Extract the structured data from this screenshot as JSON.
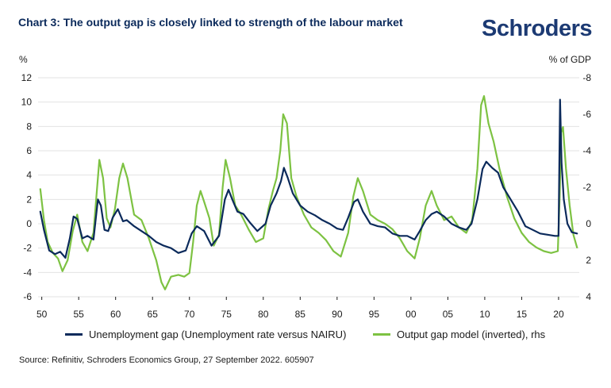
{
  "title": "Chart 3: The output gap is closely linked to strength of the labour market",
  "brand": "Schroders",
  "colors": {
    "unemployment": "#0b2a5b",
    "output_gap": "#7dc242",
    "text": "#1a1a1a"
  },
  "legend": {
    "unemployment": "Unemployment gap (Unemployment rate versus NAIRU)",
    "output_gap": "Output gap model (inverted), rhs"
  },
  "source": "Source: Refinitiv, Schroders Economics Group, 27 September 2022. 605907",
  "chart_data": {
    "type": "line",
    "ylabel": "%",
    "y2label": "% of GDP",
    "ylim": [
      -6,
      12
    ],
    "y2lim": [
      4,
      -8
    ],
    "yticks": [
      12,
      10,
      8,
      6,
      4,
      2,
      0,
      -2,
      -4,
      -6
    ],
    "y2ticks": [
      "-8",
      "-6",
      "-4",
      "-2",
      "0",
      "2",
      "4"
    ],
    "xlim": [
      1949.5,
      2022.8
    ],
    "xtick_years": [
      1950,
      1955,
      1960,
      1965,
      1970,
      1975,
      1980,
      1985,
      1990,
      1995,
      2000,
      2005,
      2010,
      2015,
      2020
    ],
    "xtick_labels": [
      "50",
      "55",
      "60",
      "65",
      "70",
      "75",
      "80",
      "85",
      "90",
      "95",
      "00",
      "05",
      "10",
      "15",
      "20"
    ],
    "series": [
      {
        "name": "Unemployment gap (Unemployment rate versus NAIRU)",
        "axis": "left",
        "x": [
          1949.8,
          1950.3,
          1951,
          1951.8,
          1952.5,
          1953.2,
          1953.8,
          1954.3,
          1954.8,
          1955.5,
          1956.2,
          1957,
          1957.6,
          1958,
          1958.5,
          1959,
          1959.6,
          1960.3,
          1961,
          1961.5,
          1962.5,
          1963.5,
          1964.5,
          1965.5,
          1966.5,
          1967.5,
          1968.5,
          1969.5,
          1970.3,
          1971,
          1972,
          1973,
          1974,
          1974.8,
          1975.3,
          1975.8,
          1976.5,
          1977.3,
          1978.2,
          1979.2,
          1980.3,
          1981,
          1981.8,
          1982.4,
          1982.8,
          1983.3,
          1984,
          1985,
          1986,
          1987,
          1988,
          1989,
          1990,
          1990.8,
          1991.5,
          1992.3,
          1992.8,
          1993.5,
          1994.5,
          1995.5,
          1996.5,
          1997.5,
          1998.5,
          1999.5,
          2000.5,
          2001.2,
          2002,
          2002.8,
          2003.5,
          2004.5,
          2005.5,
          2006.5,
          2007.5,
          2008.2,
          2009,
          2009.7,
          2010.2,
          2011,
          2011.8,
          2012.5,
          2013.5,
          2014.5,
          2015.5,
          2016.5,
          2017.5,
          2018.5,
          2019.5,
          2020.0,
          2020.2,
          2020.4,
          2020.7,
          2021.2,
          2021.8,
          2022.5
        ],
        "values": [
          1.0,
          -0.5,
          -2.2,
          -2.5,
          -2.3,
          -2.8,
          -1.2,
          0.6,
          0.4,
          -1.2,
          -1.0,
          -1.3,
          2.0,
          1.5,
          -0.5,
          -0.6,
          0.5,
          1.2,
          0.2,
          0.3,
          -0.2,
          -0.6,
          -1.0,
          -1.5,
          -1.8,
          -2.0,
          -2.4,
          -2.2,
          -0.8,
          -0.2,
          -0.6,
          -1.8,
          -1.0,
          2.0,
          2.8,
          2.0,
          1.0,
          0.8,
          0.1,
          -0.6,
          0.0,
          1.5,
          2.5,
          3.5,
          4.6,
          3.8,
          2.5,
          1.5,
          1.0,
          0.7,
          0.3,
          0.0,
          -0.4,
          -0.5,
          0.5,
          1.8,
          2.0,
          1.0,
          0.0,
          -0.2,
          -0.3,
          -0.8,
          -1.0,
          -1.0,
          -1.3,
          -0.6,
          0.3,
          0.8,
          1.0,
          0.6,
          0.0,
          -0.3,
          -0.5,
          0.0,
          2.0,
          4.5,
          5.1,
          4.6,
          4.2,
          3.0,
          2.0,
          1.0,
          -0.2,
          -0.5,
          -0.8,
          -0.9,
          -1.0,
          -1.0,
          10.2,
          5.0,
          2.0,
          0.0,
          -0.7,
          -0.8
        ]
      },
      {
        "name": "Output gap model (inverted), rhs",
        "axis": "right",
        "x": [
          1949.8,
          1950.3,
          1950.8,
          1951.5,
          1952.2,
          1952.8,
          1953.5,
          1954.2,
          1954.8,
          1955.5,
          1956.2,
          1957,
          1957.4,
          1957.8,
          1958.3,
          1958.8,
          1959.3,
          1959.9,
          1960.5,
          1961,
          1961.6,
          1962.5,
          1963.5,
          1964.5,
          1965.5,
          1966.2,
          1966.7,
          1967.5,
          1968.5,
          1969.3,
          1970,
          1970.5,
          1971.0,
          1971.5,
          1972,
          1972.7,
          1973.3,
          1974.0,
          1974.5,
          1974.9,
          1975.5,
          1976.2,
          1977,
          1978,
          1979,
          1980,
          1980.7,
          1981.3,
          1981.8,
          1982.3,
          1982.7,
          1983.2,
          1983.8,
          1984.5,
          1985.5,
          1986.5,
          1987.5,
          1988.5,
          1989.5,
          1990.5,
          1991.5,
          1992.2,
          1992.8,
          1993.5,
          1994.5,
          1995.5,
          1996.5,
          1997.5,
          1998.5,
          1999.5,
          2000.5,
          2001.2,
          2002,
          2002.8,
          2003.5,
          2004.5,
          2005.5,
          2006.5,
          2007.5,
          2008.3,
          2009.0,
          2009.5,
          2009.9,
          2010.5,
          2011.2,
          2012,
          2013,
          2014,
          2015,
          2016,
          2017,
          2018,
          2019,
          2019.9,
          2020.15,
          2020.35,
          2020.6,
          2021.0,
          2021.5,
          2022.0,
          2022.5
        ],
        "values": [
          -1.9,
          -0.2,
          1.0,
          1.6,
          1.9,
          2.6,
          2.0,
          0.4,
          -0.5,
          1.0,
          1.5,
          0.5,
          -1.5,
          -3.5,
          -2.5,
          -0.3,
          0.2,
          -0.8,
          -2.5,
          -3.3,
          -2.5,
          -0.5,
          -0.2,
          0.8,
          2.0,
          3.2,
          3.6,
          2.9,
          2.8,
          2.9,
          2.7,
          1.0,
          -1.0,
          -1.8,
          -1.2,
          -0.3,
          1.2,
          0.6,
          -2.0,
          -3.5,
          -2.5,
          -1.0,
          -0.5,
          0.3,
          1.0,
          0.8,
          -0.8,
          -1.8,
          -2.5,
          -4.0,
          -6.0,
          -5.5,
          -2.5,
          -1.5,
          -0.5,
          0.2,
          0.5,
          0.9,
          1.5,
          1.8,
          0.5,
          -1.5,
          -2.5,
          -1.8,
          -0.5,
          -0.2,
          0.0,
          0.3,
          0.8,
          1.5,
          1.9,
          0.8,
          -1.0,
          -1.8,
          -1.0,
          -0.2,
          -0.4,
          0.2,
          0.5,
          -0.2,
          -3.0,
          -6.5,
          -7.0,
          -5.5,
          -4.5,
          -3.0,
          -1.5,
          -0.3,
          0.5,
          1.0,
          1.3,
          1.5,
          1.6,
          1.5,
          -1.5,
          -5.0,
          -5.3,
          -3.0,
          -1.0,
          0.6,
          1.3
        ]
      }
    ]
  }
}
